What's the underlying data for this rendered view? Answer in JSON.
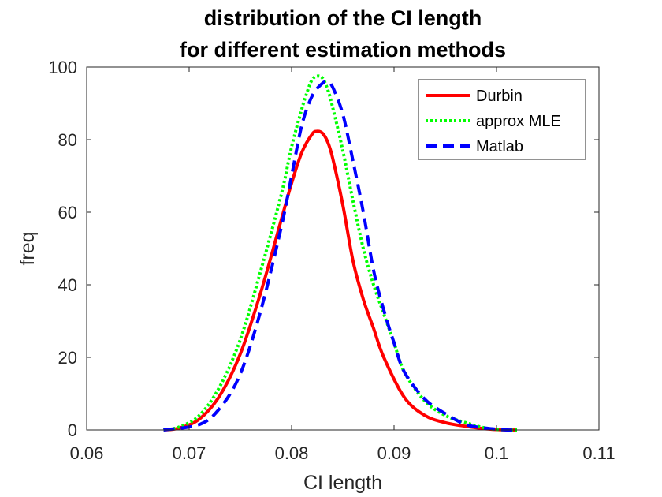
{
  "chart_data": {
    "type": "line",
    "title_lines": [
      "distribution of the CI length",
      "for different estimation methods"
    ],
    "xlabel": "CI length",
    "ylabel": "freq",
    "xlim": [
      0.06,
      0.11
    ],
    "ylim": [
      0,
      100
    ],
    "xticks": [
      0.06,
      0.07,
      0.08,
      0.09,
      0.1,
      0.11
    ],
    "xtick_labels": [
      "0.06",
      "0.07",
      "0.08",
      "0.09",
      "0.1",
      "0.11"
    ],
    "yticks": [
      0,
      20,
      40,
      60,
      80,
      100
    ],
    "ytick_labels": [
      "0",
      "20",
      "40",
      "60",
      "80",
      "100"
    ],
    "legend_placement": "top-right",
    "series": [
      {
        "name": "Durbin",
        "color": "#ff0000",
        "style": "solid",
        "x": [
          0.0675,
          0.069,
          0.071,
          0.073,
          0.075,
          0.077,
          0.079,
          0.08,
          0.081,
          0.082,
          0.0825,
          0.083,
          0.0835,
          0.084,
          0.085,
          0.086,
          0.087,
          0.088,
          0.089,
          0.091,
          0.093,
          0.095,
          0.097,
          0.099,
          0.101,
          0.102
        ],
        "y": [
          0,
          0.5,
          3,
          9.5,
          21,
          38,
          58,
          68,
          76.5,
          81.5,
          82.3,
          81.8,
          79.5,
          75,
          62,
          46.5,
          36,
          28,
          20,
          9,
          4,
          2,
          1,
          0.3,
          0,
          0
        ]
      },
      {
        "name": "approx MLE",
        "color": "#00ff00",
        "style": "dotted",
        "x": [
          0.0675,
          0.069,
          0.071,
          0.073,
          0.075,
          0.077,
          0.079,
          0.08,
          0.081,
          0.0815,
          0.082,
          0.0825,
          0.083,
          0.0835,
          0.084,
          0.085,
          0.086,
          0.087,
          0.088,
          0.089,
          0.09,
          0.091,
          0.093,
          0.095,
          0.097,
          0.099,
          0.101,
          0.102
        ],
        "y": [
          0,
          0.8,
          4,
          12,
          25,
          44,
          65,
          78,
          88.5,
          93,
          96.5,
          97.5,
          97,
          94,
          89,
          77,
          63,
          50,
          40,
          32,
          24,
          16,
          8,
          4,
          2,
          0.5,
          0,
          0
        ]
      },
      {
        "name": "Matlab",
        "color": "#0000ff",
        "style": "dashed",
        "x": [
          0.0675,
          0.071,
          0.073,
          0.075,
          0.077,
          0.079,
          0.08,
          0.081,
          0.082,
          0.083,
          0.0835,
          0.084,
          0.085,
          0.086,
          0.087,
          0.088,
          0.089,
          0.09,
          0.091,
          0.093,
          0.095,
          0.097,
          0.099,
          0.101,
          0.102
        ],
        "y": [
          0,
          1.5,
          6,
          15.5,
          33,
          56,
          70,
          84,
          92,
          95.5,
          95.8,
          94.5,
          87,
          74,
          60,
          44,
          33,
          24,
          16,
          8.5,
          4.5,
          1.5,
          0.5,
          0,
          0
        ]
      }
    ]
  }
}
